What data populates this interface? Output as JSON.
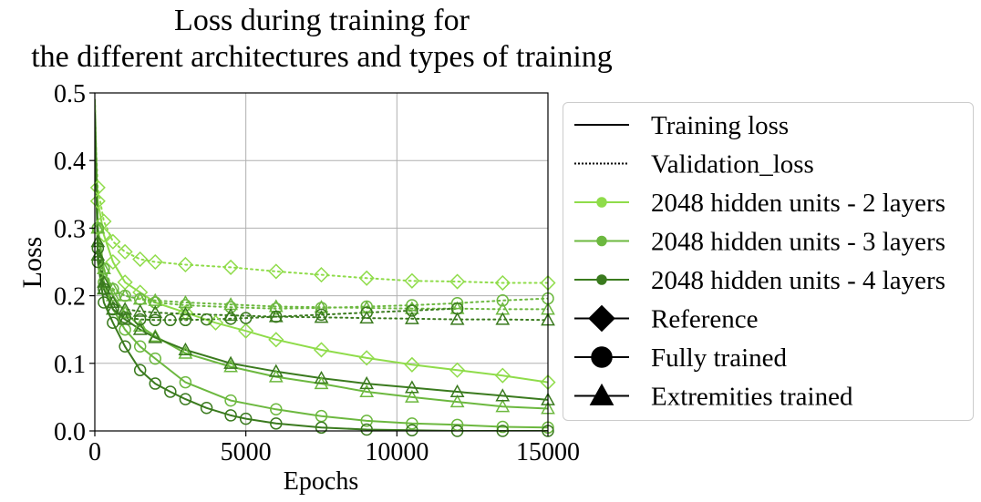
{
  "chart_data": {
    "type": "line",
    "title_lines": [
      "Loss during training for",
      "the different architectures and types of training"
    ],
    "xlabel": "Epochs",
    "ylabel": "Loss",
    "xlim": [
      0,
      15000
    ],
    "ylim": [
      0,
      0.5
    ],
    "xticks": [
      0,
      5000,
      10000,
      15000
    ],
    "yticks": [
      0.0,
      0.1,
      0.2,
      0.3,
      0.4,
      0.5
    ],
    "xtick_labels": [
      "0",
      "5000",
      "10000",
      "15000"
    ],
    "ytick_labels": [
      "0.0",
      "0.1",
      "0.2",
      "0.3",
      "0.4",
      "0.5"
    ],
    "grid": true,
    "legend_placement": "outside-right",
    "colors": {
      "2 layers": "#8fdc4a",
      "3 layers": "#6cb83f",
      "4 layers": "#3a7a1e"
    },
    "legend": [
      {
        "label": "Training loss",
        "kind": "line-solid"
      },
      {
        "label": "Validation_loss",
        "kind": "line-dotted"
      },
      {
        "label": "2048 hidden units - 2 layers",
        "kind": "color",
        "color": "#8fdc4a"
      },
      {
        "label": "2048 hidden units - 3 layers",
        "kind": "color",
        "color": "#6cb83f"
      },
      {
        "label": "2048 hidden units - 4 layers",
        "kind": "color",
        "color": "#3a7a1e"
      },
      {
        "label": "Reference",
        "kind": "marker",
        "marker": "diamond"
      },
      {
        "label": "Fully trained",
        "kind": "marker",
        "marker": "circle"
      },
      {
        "label": "Extremities trained",
        "kind": "marker",
        "marker": "triangle"
      }
    ],
    "series": [
      {
        "color": "#8fdc4a",
        "marker": "diamond",
        "style": "solid",
        "x": [
          0,
          100,
          300,
          600,
          1000,
          1500,
          2000,
          3000,
          4000,
          5000,
          6000,
          7500,
          9000,
          10500,
          12000,
          13500,
          15000
        ],
        "y": [
          0.43,
          0.34,
          0.29,
          0.25,
          0.22,
          0.205,
          0.19,
          0.175,
          0.16,
          0.148,
          0.135,
          0.12,
          0.108,
          0.098,
          0.09,
          0.082,
          0.072
        ]
      },
      {
        "color": "#8fdc4a",
        "marker": "diamond",
        "style": "dotted",
        "x": [
          0,
          100,
          300,
          600,
          1000,
          1500,
          2000,
          3000,
          4500,
          6000,
          7500,
          9000,
          10500,
          12000,
          13500,
          15000
        ],
        "y": [
          0.46,
          0.36,
          0.31,
          0.28,
          0.265,
          0.254,
          0.25,
          0.246,
          0.242,
          0.236,
          0.231,
          0.226,
          0.222,
          0.221,
          0.219,
          0.219
        ]
      },
      {
        "color": "#6cb83f",
        "marker": "triangle",
        "style": "solid",
        "x": [
          0,
          100,
          300,
          600,
          1000,
          1500,
          2000,
          3000,
          4500,
          6000,
          7500,
          9000,
          10500,
          12000,
          13500,
          15000
        ],
        "y": [
          0.45,
          0.3,
          0.24,
          0.2,
          0.175,
          0.155,
          0.14,
          0.115,
          0.095,
          0.08,
          0.07,
          0.058,
          0.05,
          0.043,
          0.036,
          0.033
        ]
      },
      {
        "color": "#6cb83f",
        "marker": "triangle",
        "style": "dotted",
        "x": [
          0,
          100,
          300,
          600,
          1000,
          1500,
          2000,
          3000,
          4500,
          6000,
          7500,
          9000,
          10500,
          12000,
          13500,
          15000
        ],
        "y": [
          0.45,
          0.3,
          0.24,
          0.21,
          0.2,
          0.195,
          0.193,
          0.19,
          0.187,
          0.184,
          0.183,
          0.182,
          0.181,
          0.181,
          0.18,
          0.18
        ]
      },
      {
        "color": "#6cb83f",
        "marker": "circle",
        "style": "solid",
        "x": [
          0,
          100,
          300,
          600,
          1000,
          1500,
          2000,
          3000,
          4500,
          6000,
          7500,
          9000,
          10500,
          12000,
          13500,
          15000
        ],
        "y": [
          0.49,
          0.3,
          0.22,
          0.18,
          0.15,
          0.125,
          0.107,
          0.072,
          0.045,
          0.032,
          0.022,
          0.015,
          0.011,
          0.009,
          0.006,
          0.005
        ]
      },
      {
        "color": "#6cb83f",
        "marker": "circle",
        "style": "dotted",
        "x": [
          0,
          100,
          300,
          600,
          1000,
          1500,
          2000,
          3000,
          4500,
          6000,
          7500,
          9000,
          10500,
          12000,
          13500,
          15000
        ],
        "y": [
          0.49,
          0.3,
          0.24,
          0.21,
          0.2,
          0.195,
          0.19,
          0.186,
          0.183,
          0.181,
          0.182,
          0.184,
          0.186,
          0.189,
          0.193,
          0.196
        ]
      },
      {
        "color": "#3a7a1e",
        "marker": "triangle",
        "style": "solid",
        "x": [
          0,
          100,
          300,
          600,
          1000,
          1500,
          2000,
          3000,
          4500,
          6000,
          7500,
          9000,
          10500,
          12000,
          13500,
          15000
        ],
        "y": [
          0.47,
          0.26,
          0.21,
          0.18,
          0.165,
          0.15,
          0.138,
          0.12,
          0.1,
          0.088,
          0.078,
          0.07,
          0.064,
          0.058,
          0.052,
          0.046
        ]
      },
      {
        "color": "#3a7a1e",
        "marker": "triangle",
        "style": "dotted",
        "x": [
          0,
          100,
          300,
          600,
          1000,
          1500,
          2000,
          3000,
          4500,
          6000,
          7500,
          9000,
          10500,
          12000,
          13500,
          15000
        ],
        "y": [
          0.47,
          0.28,
          0.22,
          0.19,
          0.18,
          0.177,
          0.175,
          0.173,
          0.171,
          0.169,
          0.168,
          0.167,
          0.166,
          0.165,
          0.165,
          0.164
        ]
      },
      {
        "color": "#3a7a1e",
        "marker": "circle",
        "style": "solid",
        "x": [
          0,
          100,
          300,
          600,
          1000,
          1500,
          2000,
          2500,
          3000,
          3700,
          4500,
          5000,
          6000,
          7500,
          9000,
          10500,
          12000,
          13500,
          15000
        ],
        "y": [
          0.47,
          0.25,
          0.19,
          0.16,
          0.125,
          0.09,
          0.07,
          0.058,
          0.047,
          0.034,
          0.023,
          0.018,
          0.011,
          0.005,
          0.002,
          0.001,
          0.0,
          0.0,
          0.0
        ]
      },
      {
        "color": "#3a7a1e",
        "marker": "circle",
        "style": "dotted",
        "x": [
          0,
          100,
          300,
          600,
          1000,
          1500,
          2000,
          2500,
          3000,
          3700,
          4500,
          5000,
          6000,
          7500,
          9000,
          10500,
          12000
        ],
        "y": [
          0.47,
          0.27,
          0.21,
          0.18,
          0.168,
          0.165,
          0.164,
          0.164,
          0.164,
          0.165,
          0.166,
          0.167,
          0.169,
          0.172,
          0.175,
          0.178,
          0.181
        ]
      }
    ]
  }
}
